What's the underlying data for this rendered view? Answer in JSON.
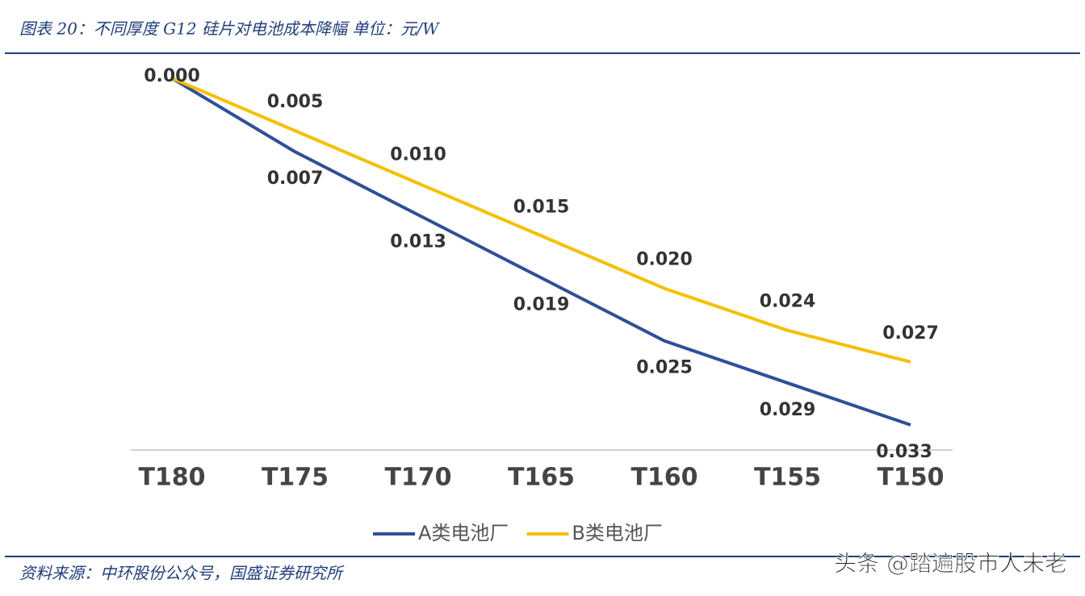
{
  "chart_data": {
    "type": "line",
    "title": "图表 20：不同厚度 G12 硅片对电池成本降幅 单位：元/W",
    "source": "资料来源：中环股份公众号，国盛证券研究所",
    "categories": [
      "T180",
      "T175",
      "T170",
      "T165",
      "T160",
      "T155",
      "T150"
    ],
    "series": [
      {
        "name": "A类电池厂",
        "color": "#2f4f98",
        "values": [
          0,
          0.007,
          0.013,
          0.019,
          0.025,
          0.029,
          0.033
        ],
        "value_labels": [
          null,
          "0.007",
          "0.013",
          "0.019",
          "0.025",
          "0.029",
          "0.033"
        ]
      },
      {
        "name": "B类电池厂",
        "color": "#f5c000",
        "values": [
          0,
          0.005,
          0.01,
          0.015,
          0.02,
          0.024,
          0.027
        ],
        "value_labels": [
          "0.000",
          "0.005",
          "0.010",
          "0.015",
          "0.020",
          "0.024",
          "0.027"
        ]
      }
    ],
    "ylim": [
      0.035,
      0
    ],
    "legend": "bottom"
  },
  "watermark": "头条 @踏遍股市人未老"
}
